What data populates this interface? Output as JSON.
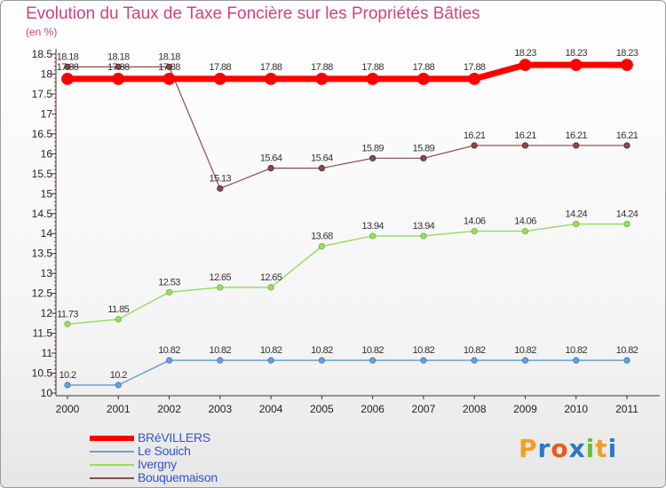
{
  "chart_data": {
    "type": "line",
    "title": "Evolution du Taux de Taxe Foncière sur les Propriétés Bâties",
    "unit": "(en %)",
    "x": [
      "2000",
      "2001",
      "2002",
      "2003",
      "2004",
      "2005",
      "2006",
      "2007",
      "2008",
      "2009",
      "2010",
      "2011"
    ],
    "ylim": [
      10,
      18.5
    ],
    "yticks": [
      "10",
      "10.5",
      "11",
      "11.5",
      "12",
      "12.5",
      "13",
      "13.5",
      "14",
      "14.5",
      "15",
      "15.5",
      "16",
      "16.5",
      "17",
      "17.5",
      "18",
      "18.5"
    ],
    "series": [
      {
        "name": "BRéVILLERS",
        "color": "#ff0000",
        "values": [
          17.88,
          17.88,
          17.88,
          17.88,
          17.88,
          17.88,
          17.88,
          17.88,
          17.88,
          18.23,
          18.23,
          18.23
        ],
        "labels": [
          "17.88",
          "17.88",
          "17.88",
          "17.88",
          "17.88",
          "17.88",
          "17.88",
          "17.88",
          "17.88",
          "18.23",
          "18.23",
          "18.23"
        ]
      },
      {
        "name": "Le Souich",
        "color": "#6d9ed4",
        "values": [
          10.2,
          10.2,
          10.82,
          10.82,
          10.82,
          10.82,
          10.82,
          10.82,
          10.82,
          10.82,
          10.82,
          10.82
        ],
        "labels": [
          "10.2",
          "10.2",
          "10.82",
          "10.82",
          "10.82",
          "10.82",
          "10.82",
          "10.82",
          "10.82",
          "10.82",
          "10.82",
          "10.82"
        ]
      },
      {
        "name": "Ivergny",
        "color": "#99dd66",
        "values": [
          11.73,
          11.85,
          12.53,
          12.65,
          12.65,
          13.68,
          13.94,
          13.94,
          14.06,
          14.06,
          14.24,
          14.24
        ],
        "labels": [
          "11.73",
          "11.85",
          "12.53",
          "12.65",
          "12.65",
          "13.68",
          "13.94",
          "13.94",
          "14.06",
          "14.06",
          "14.24",
          "14.24"
        ]
      },
      {
        "name": "Bouquemaison",
        "color": "#8b4a4a",
        "values": [
          18.18,
          18.18,
          18.18,
          15.13,
          15.64,
          15.64,
          15.89,
          15.89,
          16.21,
          16.21,
          16.21,
          16.21
        ],
        "labels": [
          "18.18",
          "18.18",
          "18.18",
          "15.13",
          "15.64",
          "15.64",
          "15.89",
          "15.89",
          "16.21",
          "16.21",
          "16.21",
          "16.21"
        ]
      }
    ]
  },
  "logo": {
    "text": "Proxiti",
    "colors": [
      "#f0a020",
      "#2a78c8",
      "#e85a1a",
      "#2a78c8",
      "#6abf3a",
      "#f0a020",
      "#2a78c8"
    ]
  }
}
